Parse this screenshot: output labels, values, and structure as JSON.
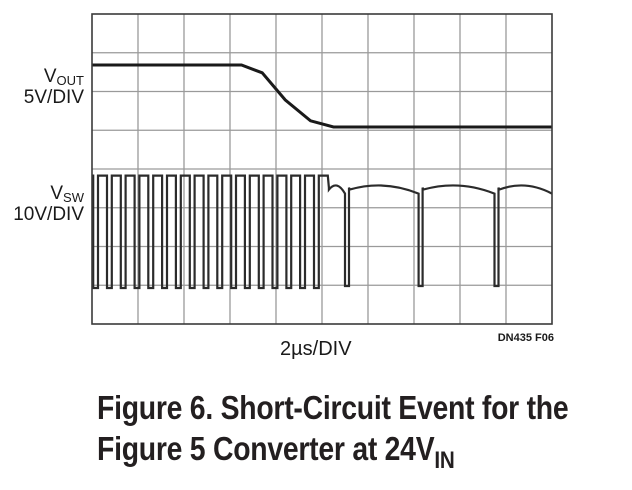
{
  "chart_data": {
    "type": "line",
    "title": "",
    "x_scale": "2µs/DIV",
    "grid": true,
    "x_divisions": 10,
    "y_divisions": 8,
    "x_unit": "µs",
    "series": [
      {
        "name": "V_OUT",
        "label_main": "V",
        "label_sub": "OUT",
        "scale": "5V/DIV",
        "color": "#1a1a1a",
        "points": [
          [
            0,
            1.6
          ],
          [
            6.5,
            1.6
          ],
          [
            7.4,
            1.4
          ],
          [
            8.4,
            0.7
          ],
          [
            9.5,
            0.16
          ],
          [
            10.5,
            0.0
          ],
          [
            20,
            0.0
          ]
        ]
      },
      {
        "name": "V_SW",
        "label_main": "V",
        "label_sub": "SW",
        "scale": "10V/DIV",
        "color": "#1a1a1a",
        "pulse_period_us": 0.6,
        "pulse_count": 17,
        "pulse_high_div": 2.9,
        "pulse_low_div": 0.0,
        "dips_us": [
          [
            8.86,
            7.35
          ],
          [
            12.86,
            11.3
          ],
          [
            16.88,
            17.3
          ]
        ]
      }
    ]
  },
  "figure_code": "DN435 F06",
  "caption": {
    "line1": "Figure 6. Short-Circuit Event for the",
    "line2_main": "Figure 5 Converter at 24V",
    "line2_sub": "IN"
  }
}
